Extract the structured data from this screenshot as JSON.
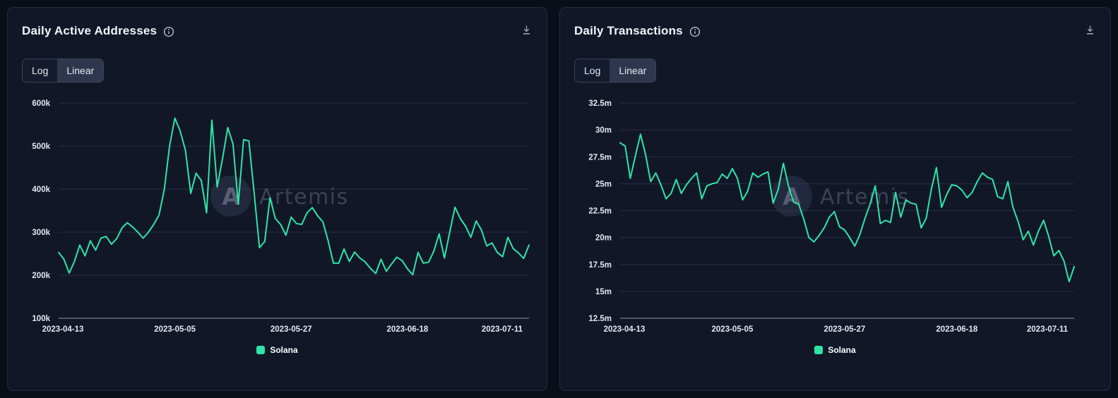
{
  "page": {
    "background": "#0a0e19",
    "accent_color": "#2fe5a5"
  },
  "panels": [
    {
      "title": "Daily Active Addresses",
      "icons": {
        "info": "info-icon",
        "download": "download-icon"
      },
      "scale_toggle": {
        "options": [
          "Log",
          "Linear"
        ],
        "selected": "Linear"
      },
      "legend": [
        {
          "label": "Solana",
          "color": "#2fe5a5"
        }
      ]
    },
    {
      "title": "Daily Transactions",
      "icons": {
        "info": "info-icon",
        "download": "download-icon"
      },
      "scale_toggle": {
        "options": [
          "Log",
          "Linear"
        ],
        "selected": "Linear"
      },
      "legend": [
        {
          "label": "Solana",
          "color": "#2fe5a5"
        }
      ]
    }
  ],
  "chart_data": [
    {
      "type": "line",
      "title": "Daily Active Addresses",
      "x_range": [
        "2023-04-13",
        "2023-07-11"
      ],
      "x_count": 90,
      "x_tick_labels": [
        "2023-04-13",
        "2023-05-05",
        "2023-05-27",
        "2023-06-18",
        "2023-07-11"
      ],
      "x_tick_positions": [
        0,
        22,
        44,
        66,
        89
      ],
      "y_ticks": [
        "600k",
        "500k",
        "400k",
        "300k",
        "200k",
        "100k"
      ],
      "y_tick_values": [
        600000,
        500000,
        400000,
        300000,
        200000,
        100000
      ],
      "ylim": [
        100,
        600
      ],
      "value_unit": "thousands of addresses",
      "grid": true,
      "legend_position": "bottom",
      "watermark": {
        "logo_letter": "A",
        "text": "Artemis"
      },
      "series": [
        {
          "name": "Solana",
          "color": "#2fe5a5",
          "values": [
            253,
            237,
            205,
            232,
            270,
            245,
            280,
            258,
            286,
            290,
            272,
            285,
            310,
            322,
            312,
            300,
            286,
            300,
            318,
            340,
            400,
            500,
            565,
            535,
            490,
            390,
            437,
            420,
            345,
            560,
            405,
            470,
            543,
            505,
            365,
            515,
            512,
            390,
            264,
            278,
            380,
            332,
            318,
            293,
            335,
            320,
            318,
            345,
            357,
            338,
            324,
            280,
            228,
            228,
            261,
            232,
            254,
            240,
            231,
            216,
            204,
            237,
            209,
            226,
            242,
            234,
            215,
            201,
            253,
            228,
            230,
            256,
            296,
            240,
            300,
            358,
            332,
            314,
            288,
            326,
            305,
            268,
            275,
            253,
            243,
            288,
            262,
            252,
            239,
            270
          ]
        }
      ]
    },
    {
      "type": "line",
      "title": "Daily Transactions",
      "x_range": [
        "2023-04-13",
        "2023-07-11"
      ],
      "x_count": 90,
      "x_tick_labels": [
        "2023-04-13",
        "2023-05-05",
        "2023-05-27",
        "2023-06-18",
        "2023-07-11"
      ],
      "x_tick_positions": [
        0,
        22,
        44,
        66,
        89
      ],
      "y_ticks": [
        "32.5m",
        "30m",
        "27.5m",
        "25m",
        "22.5m",
        "20m",
        "17.5m",
        "15m",
        "12.5m"
      ],
      "y_tick_values": [
        32500000,
        30000000,
        27500000,
        25000000,
        22500000,
        20000000,
        17500000,
        15000000,
        12500000
      ],
      "ylim": [
        12.5,
        32.5
      ],
      "value_unit": "millions of transactions",
      "grid": true,
      "legend_position": "bottom",
      "watermark": {
        "logo_letter": "A",
        "text": "Artemis"
      },
      "series": [
        {
          "name": "Solana",
          "color": "#2fe5a5",
          "values": [
            28.8,
            28.5,
            25.5,
            27.6,
            29.6,
            27.7,
            25.2,
            26.0,
            24.9,
            23.6,
            24.1,
            25.4,
            24.1,
            24.9,
            25.5,
            26.0,
            23.6,
            24.8,
            25.0,
            25.1,
            25.9,
            25.5,
            26.4,
            25.5,
            23.5,
            24.3,
            26.0,
            25.6,
            25.9,
            26.1,
            23.2,
            24.5,
            26.9,
            24.8,
            23.3,
            23.1,
            21.7,
            20.0,
            19.6,
            20.2,
            20.9,
            21.9,
            22.4,
            21.0,
            20.7,
            20.0,
            19.2,
            20.3,
            21.8,
            23.1,
            24.8,
            21.3,
            21.6,
            21.4,
            24.2,
            21.9,
            23.5,
            23.2,
            23.1,
            20.9,
            21.8,
            24.5,
            26.5,
            22.8,
            24.0,
            24.9,
            24.8,
            24.4,
            23.7,
            24.2,
            25.2,
            26.0,
            25.6,
            25.4,
            23.8,
            23.6,
            25.2,
            22.8,
            21.5,
            19.8,
            20.6,
            19.3,
            20.6,
            21.6,
            20.1,
            18.3,
            18.8,
            17.8,
            15.9,
            17.3
          ]
        }
      ]
    }
  ]
}
